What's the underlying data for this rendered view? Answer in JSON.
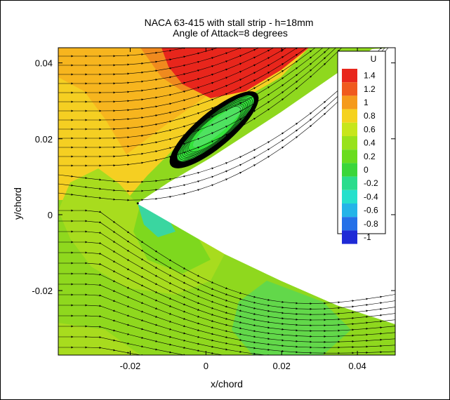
{
  "chart_data": {
    "type": "contour",
    "title": "NACA 63-415 with stall strip - h=18mm",
    "subtitle": "Angle of Attack=8 degrees",
    "xlabel": "x/chord",
    "ylabel": "y/chord",
    "xlim": [
      -0.039,
      0.05
    ],
    "ylim": [
      -0.037,
      0.044
    ],
    "x_ticks": [
      "-0.02",
      "0",
      "0.02",
      "0.04"
    ],
    "x_tick_values": [
      -0.02,
      0,
      0.02,
      0.04
    ],
    "y_ticks": [
      "0.04",
      "0.02",
      "0",
      "-0.02"
    ],
    "y_tick_values": [
      0.04,
      0.02,
      0,
      -0.02
    ],
    "grid": false,
    "legend": {
      "title": "U",
      "placement": "top-right",
      "levels": [
        "1.4",
        "1.2",
        "1",
        "0.8",
        "0.6",
        "0.4",
        "0.2",
        "0",
        "-0.2",
        "-0.4",
        "-0.6",
        "-0.8",
        "-1"
      ],
      "level_values": [
        1.4,
        1.2,
        1.0,
        0.8,
        0.6,
        0.4,
        0.2,
        0.0,
        -0.2,
        -0.4,
        -0.6,
        -0.8,
        -1.0
      ],
      "colors": [
        "#e8261c",
        "#f05a1e",
        "#f59a1c",
        "#f5d21e",
        "#c7e61c",
        "#98e21c",
        "#6adc1e",
        "#3ad63a",
        "#2adc8c",
        "#26e0cc",
        "#24b4e8",
        "#2470e8",
        "#1e2ad6"
      ]
    },
    "separation_bubble_center": [
      0.002,
      0.022
    ],
    "stagnation_point": [
      -0.018,
      0.003
    ],
    "colors": {
      "high_u_region": "#ed4a1f",
      "freestream_region": "#f5cf22",
      "wake_region": "#7ed81e",
      "low_u_core": "#1ee6a8"
    }
  }
}
